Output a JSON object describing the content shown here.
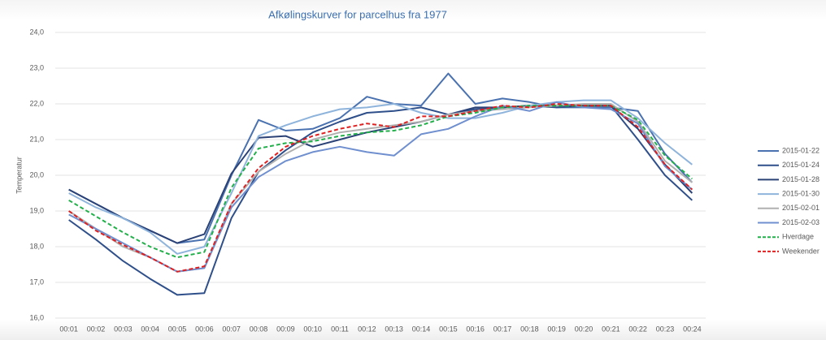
{
  "chart_data": {
    "type": "line",
    "title": "Afkølingskurver for parcelhus fra 1977",
    "y_label": "Temperatur",
    "categories": [
      "00:01",
      "00:02",
      "00:03",
      "00:04",
      "00:05",
      "00:06",
      "00:07",
      "00:08",
      "00:09",
      "00:10",
      "00:11",
      "00:12",
      "00:13",
      "00:14",
      "00:15",
      "00:16",
      "00:17",
      "00:18",
      "00:19",
      "00:20",
      "00:21",
      "00:22",
      "00:23",
      "00:24"
    ],
    "ylim": [
      16,
      24
    ],
    "yticks": [
      {
        "value": 16,
        "label": "16,0"
      },
      {
        "value": 17,
        "label": "17,0"
      },
      {
        "value": 18,
        "label": "18,0"
      },
      {
        "value": 19,
        "label": "19,0"
      },
      {
        "value": 20,
        "label": "20,0"
      },
      {
        "value": 21,
        "label": "21,0"
      },
      {
        "value": 22,
        "label": "22,0"
      },
      {
        "value": 23,
        "label": "23,0"
      },
      {
        "value": 24,
        "label": "24,0"
      }
    ],
    "grid": true,
    "series": [
      {
        "name": "2015-01-22",
        "color": "#4a72b0",
        "values": [
          19.6,
          19.2,
          18.8,
          18.45,
          18.1,
          18.2,
          20.0,
          21.55,
          21.25,
          21.3,
          21.6,
          22.2,
          22.0,
          21.95,
          22.85,
          22.0,
          22.15,
          22.05,
          21.9,
          21.9,
          21.9,
          21.8,
          20.6,
          19.8
        ]
      },
      {
        "name": "2015-01-24",
        "color": "#2e4f8a",
        "values": [
          18.75,
          18.2,
          17.6,
          17.1,
          16.65,
          16.7,
          18.8,
          20.1,
          20.7,
          21.2,
          21.5,
          21.75,
          21.8,
          21.9,
          21.7,
          21.85,
          21.9,
          21.95,
          21.9,
          21.95,
          21.95,
          21.0,
          20.0,
          19.3
        ]
      },
      {
        "name": "2015-01-28",
        "color": "#2b4277",
        "values": [
          19.6,
          19.2,
          18.8,
          18.45,
          18.1,
          18.35,
          20.05,
          21.05,
          21.1,
          20.8,
          21.0,
          21.2,
          21.35,
          21.5,
          21.7,
          21.9,
          21.9,
          21.95,
          21.95,
          21.95,
          21.95,
          21.3,
          20.3,
          19.5
        ]
      },
      {
        "name": "2015-01-30",
        "color": "#8fb4dc",
        "values": [
          19.5,
          19.1,
          18.8,
          18.4,
          17.8,
          18.0,
          19.5,
          21.1,
          21.4,
          21.65,
          21.85,
          21.9,
          22.0,
          21.75,
          21.6,
          21.6,
          21.75,
          21.95,
          22.05,
          22.1,
          22.1,
          21.6,
          20.9,
          20.3
        ]
      },
      {
        "name": "2015-02-01",
        "color": "#b0b0b0",
        "values": [
          19.0,
          18.5,
          18.0,
          17.7,
          17.3,
          17.4,
          19.2,
          20.1,
          20.6,
          21.0,
          21.2,
          21.3,
          21.4,
          21.5,
          21.7,
          21.8,
          21.85,
          21.9,
          21.95,
          22.0,
          22.0,
          21.5,
          20.4,
          19.8
        ]
      },
      {
        "name": "2015-02-03",
        "color": "#6f8fcf",
        "values": [
          18.9,
          18.5,
          18.1,
          17.7,
          17.3,
          17.4,
          19.1,
          19.95,
          20.4,
          20.65,
          20.8,
          20.65,
          20.55,
          21.15,
          21.3,
          21.65,
          21.95,
          21.8,
          22.05,
          21.9,
          21.85,
          21.45,
          20.25,
          19.6
        ]
      },
      {
        "name": "Hverdage",
        "color": "#22b04a",
        "dashed": true,
        "values": [
          19.3,
          18.85,
          18.4,
          18.0,
          17.7,
          17.85,
          19.65,
          20.75,
          20.9,
          20.95,
          21.1,
          21.2,
          21.25,
          21.4,
          21.65,
          21.75,
          21.9,
          21.95,
          21.95,
          21.95,
          21.95,
          21.55,
          20.55,
          19.9
        ]
      },
      {
        "name": "Weekender",
        "color": "#e02020",
        "dashed": true,
        "values": [
          19.0,
          18.45,
          18.05,
          17.7,
          17.3,
          17.45,
          19.2,
          20.2,
          20.8,
          21.1,
          21.3,
          21.45,
          21.35,
          21.65,
          21.65,
          21.8,
          21.95,
          21.9,
          22.0,
          21.95,
          21.95,
          21.35,
          20.3,
          19.6
        ]
      }
    ]
  }
}
